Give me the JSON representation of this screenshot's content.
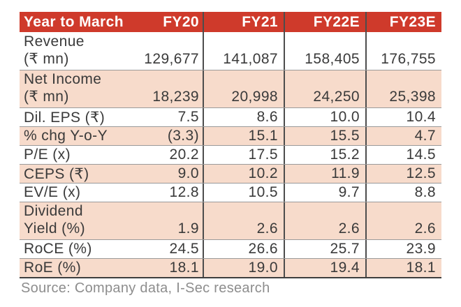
{
  "colors": {
    "header_bg": "#cf3a2b",
    "header_text": "#ffffff",
    "shaded_row_bg": "#f7dbcb",
    "body_text": "#3a3a3a",
    "grid_line": "#4d4d4d",
    "row_line": "#9a9a9a",
    "source_text": "#8d8d8d"
  },
  "table": {
    "header": {
      "col1_label": "Year to March",
      "col1_value": "FY20",
      "cols": [
        "FY21",
        "FY22E",
        "FY23E"
      ]
    },
    "rows": [
      {
        "label": "Revenue",
        "label2": "(₹ mn)",
        "values": [
          "129,677",
          "141,087",
          "158,405",
          "176,755"
        ]
      },
      {
        "label": "Net Income",
        "label2": "(₹ mn)",
        "values": [
          "18,239",
          "20,998",
          "24,250",
          "25,398"
        ]
      },
      {
        "label": "Dil. EPS (₹)",
        "values": [
          "7.5",
          "8.6",
          "10.0",
          "10.4"
        ]
      },
      {
        "label": "% chg Y-o-Y",
        "values": [
          "(3.3)",
          "15.1",
          "15.5",
          "4.7"
        ]
      },
      {
        "label": "P/E (x)",
        "values": [
          "20.2",
          "17.5",
          "15.2",
          "14.5"
        ]
      },
      {
        "label": "CEPS (₹)",
        "values": [
          "9.0",
          "10.2",
          "11.9",
          "12.5"
        ]
      },
      {
        "label": "EV/E (x)",
        "values": [
          "12.8",
          "10.5",
          "9.7",
          "8.8"
        ]
      },
      {
        "label": "Dividend",
        "label2": "Yield (%)",
        "values": [
          "1.9",
          "2.6",
          "2.6",
          "2.6"
        ]
      },
      {
        "label": "RoCE (%)",
        "values": [
          "24.5",
          "26.6",
          "25.7",
          "23.9"
        ]
      },
      {
        "label": "RoE (%)",
        "values": [
          "18.1",
          "19.0",
          "19.4",
          "18.1"
        ]
      }
    ]
  },
  "source": "Source: Company data, I-Sec research"
}
